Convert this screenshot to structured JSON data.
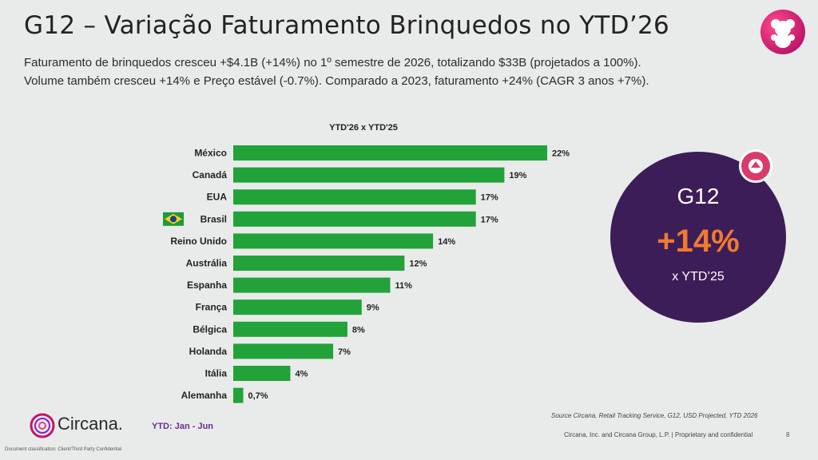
{
  "title": "G12 – Variação Faturamento Brinquedos no YTD’26",
  "subtitle_line1": "Faturamento de brinquedos cresceu +$4.1B (+14%) no 1º semestre de 2026, totalizando $33B (projetados a 100%).",
  "subtitle_line2": "Volume também cresceu +14% e Preço estável (-0.7%). Comparado a 2023, faturamento +24% (CAGR 3 anos +7%).",
  "colors": {
    "bar": "#22a238",
    "bubble_bg": "#3d1d58",
    "accent_orange": "#f07a2e",
    "brand_pink": "#d93b6a"
  },
  "chart_data": {
    "type": "bar",
    "orientation": "horizontal",
    "title": "YTD'26 x YTD'25",
    "categories": [
      "México",
      "Canadá",
      "EUA",
      "Brasil",
      "Reino Unido",
      "Austrália",
      "Espanha",
      "França",
      "Bélgica",
      "Holanda",
      "Itália",
      "Alemanha"
    ],
    "values": [
      22,
      19,
      17,
      17,
      14,
      12,
      11,
      9,
      8,
      7,
      4,
      0.7
    ],
    "value_labels": [
      "22%",
      "19%",
      "17%",
      "17%",
      "14%",
      "12%",
      "11%",
      "9%",
      "8%",
      "7%",
      "4%",
      "0,7%"
    ],
    "unit": "%",
    "xlim": [
      0,
      22
    ],
    "highlight_icon": {
      "category": "Brasil",
      "icon": "brazil-flag-icon"
    }
  },
  "callout": {
    "label": "G12",
    "value": "+14%",
    "comparison": "x YTD’25",
    "icon": "arrow-up-icon"
  },
  "footer": {
    "brand": "Circana.",
    "ytd_note": "YTD: Jan - Jun",
    "classification": "Document classification: Client/Third Party Confidential",
    "source": "Source Circana, Retail Tracking Service, G12, USD Projected, YTD 2026",
    "copyright": "Circana, Inc. and Circana Group, L.P. | Proprietary and confidential",
    "page": "8"
  }
}
